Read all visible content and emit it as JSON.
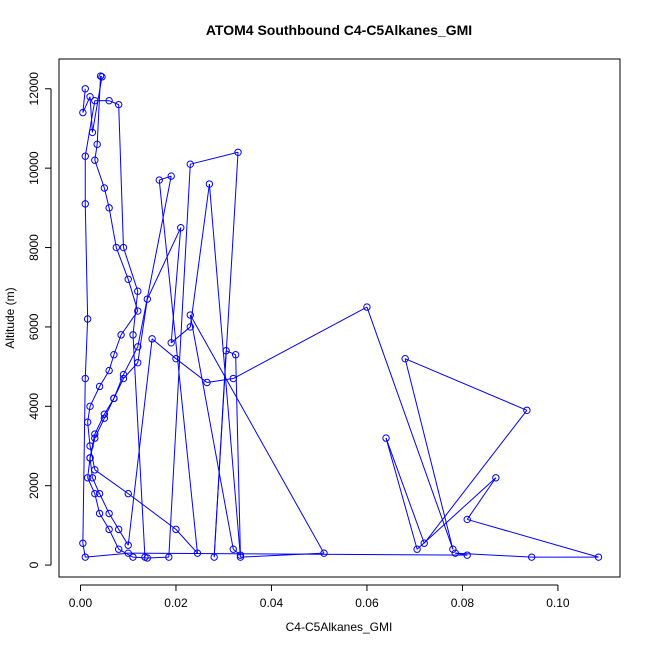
{
  "chart_data": {
    "type": "line",
    "title": "ATOM4 Southbound C4-C5Alkanes_GMI",
    "xlabel": "C4-C5Alkanes_GMI",
    "ylabel": "Altitude (m)",
    "xlim": [
      -0.0045,
      0.113
    ],
    "ylim": [
      -300,
      12750
    ],
    "xticks": [
      0.0,
      0.02,
      0.04,
      0.06,
      0.08,
      0.1
    ],
    "xtick_labels": [
      "0.00",
      "0.02",
      "0.04",
      "0.06",
      "0.08",
      "0.10"
    ],
    "yticks": [
      0,
      2000,
      4000,
      6000,
      8000,
      10000,
      12000
    ],
    "ytick_labels": [
      "0",
      "2000",
      "4000",
      "6000",
      "8000",
      "10000",
      "12000"
    ],
    "grid": false,
    "legend": "none",
    "series_style": "lines with open circle markers",
    "color": "#0000ff",
    "x": [
      0.001,
      0.0005,
      0.002,
      0.0025,
      0.0045,
      0.0042,
      0.0035,
      0.003,
      0.005,
      0.006,
      0.0075,
      0.01,
      0.012,
      0.0085,
      0.007,
      0.006,
      0.004,
      0.002,
      0.0015,
      0.002,
      0.003,
      0.01,
      0.02,
      0.0245,
      0.0165,
      0.019,
      0.012,
      0.009,
      0.007,
      0.005,
      0.003,
      0.002,
      0.0015,
      0.003,
      0.004,
      0.006,
      0.008,
      0.011,
      0.014,
      0.0185,
      0.023,
      0.033,
      0.028,
      0.0305,
      0.0325,
      0.0335,
      0.032,
      0.023,
      0.051,
      0.0335,
      0.027,
      0.023,
      0.019,
      0.021,
      0.014,
      0.012,
      0.009,
      0.007,
      0.005,
      0.003,
      0.002,
      0.0025,
      0.004,
      0.006,
      0.008,
      0.01,
      0.015,
      0.02,
      0.0265,
      0.032,
      0.06,
      0.078,
      0.068,
      0.0935,
      0.072,
      0.064,
      0.0705,
      0.087,
      0.081,
      0.1085,
      0.0945,
      0.0785,
      0.081,
      0.01,
      0.001,
      0.0005,
      0.001,
      0.0015,
      0.001,
      0.001,
      0.003,
      0.006,
      0.008,
      0.009,
      0.012,
      0.011,
      0.0135
    ],
    "y": [
      12000,
      11400,
      11800,
      10900,
      12300,
      12320,
      10600,
      10200,
      9500,
      9000,
      8000,
      7200,
      6400,
      5800,
      5300,
      4900,
      4500,
      4000,
      3600,
      3000,
      2400,
      1800,
      900,
      300,
      9700,
      9800,
      5500,
      4800,
      4200,
      3800,
      3300,
      2700,
      2200,
      1800,
      1300,
      900,
      400,
      200,
      180,
      200,
      10100,
      10400,
      200,
      5400,
      5300,
      250,
      400,
      6300,
      300,
      200,
      9600,
      6000,
      5600,
      8500,
      6700,
      5100,
      4700,
      4200,
      3700,
      3200,
      2700,
      2200,
      1800,
      1300,
      900,
      500,
      5700,
      5200,
      4600,
      4700,
      6500,
      400,
      5200,
      3900,
      550,
      3200,
      400,
      2200,
      1150,
      200,
      200,
      300,
      250,
      300,
      200,
      550,
      4700,
      6200,
      9100,
      10300,
      11700,
      11700,
      11600,
      8000,
      6900,
      5800,
      200
    ]
  }
}
